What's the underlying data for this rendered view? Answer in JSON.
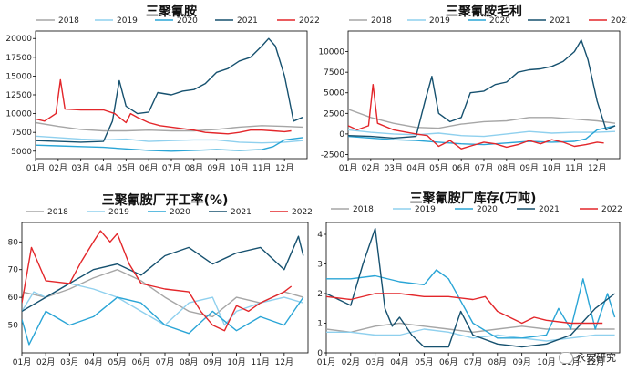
{
  "legend_labels": [
    "2018",
    "2019",
    "2020",
    "2021",
    "2022"
  ],
  "colors": {
    "2018": "#a6a6a6",
    "2019": "#8fd0ee",
    "2020": "#2aa5d6",
    "2021": "#16516f",
    "2022": "#e3262a"
  },
  "months": [
    "01月",
    "02月",
    "03月",
    "04月",
    "05月",
    "06月",
    "07月",
    "08月",
    "09月",
    "10月",
    "11月",
    "12月"
  ],
  "watermark": "永安研究",
  "chart_data": [
    {
      "type": "line",
      "title": "三聚氰胺",
      "ylim": [
        4000,
        21000
      ],
      "yticks": [
        5000,
        7500,
        10000,
        12500,
        15000,
        17500,
        20000
      ],
      "series": [
        {
          "name": "2018",
          "x": [
            0,
            1,
            2,
            3,
            4,
            5,
            6,
            7,
            8,
            9,
            10,
            11,
            11.8
          ],
          "y": [
            8800,
            8300,
            7900,
            7700,
            7700,
            7800,
            7700,
            7700,
            7900,
            8200,
            8400,
            8300,
            8200
          ]
        },
        {
          "name": "2019",
          "x": [
            0,
            1,
            2,
            3,
            4,
            5,
            6,
            7,
            8,
            9,
            10,
            11,
            11.8
          ],
          "y": [
            7000,
            6800,
            6600,
            6500,
            6600,
            6300,
            6400,
            6500,
            6500,
            6200,
            6100,
            6200,
            6400
          ]
        },
        {
          "name": "2020",
          "x": [
            0,
            1,
            2,
            3,
            4,
            5,
            6,
            7,
            8,
            9,
            10,
            10.5,
            11,
            11.8
          ],
          "y": [
            5800,
            5700,
            5600,
            5500,
            5300,
            5100,
            5000,
            5100,
            5200,
            5100,
            5200,
            5600,
            6500,
            6800
          ]
        },
        {
          "name": "2021",
          "x": [
            0,
            1,
            2,
            3,
            3.4,
            3.7,
            4,
            4.5,
            5,
            5.4,
            6,
            6.5,
            7,
            7.5,
            8,
            8.5,
            9,
            9.5,
            10,
            10.3,
            10.6,
            11,
            11.4,
            11.8
          ],
          "y": [
            6400,
            6300,
            6200,
            6300,
            9000,
            14400,
            11000,
            10000,
            10200,
            12800,
            12500,
            13000,
            13200,
            14000,
            15500,
            16000,
            17000,
            17500,
            19000,
            20000,
            19000,
            15000,
            9000,
            9500
          ]
        },
        {
          "name": "2022",
          "x": [
            0,
            0.4,
            0.9,
            1.1,
            1.3,
            2,
            3,
            3.5,
            4,
            4.2,
            4.5,
            5,
            5.5,
            6,
            6.5,
            7,
            7.5,
            8,
            8.5,
            9,
            9.5,
            10,
            10.5,
            11,
            11.3
          ],
          "y": [
            9300,
            9000,
            10000,
            14500,
            10600,
            10500,
            10500,
            10000,
            8800,
            10000,
            9500,
            8800,
            8400,
            8200,
            8000,
            7800,
            7500,
            7400,
            7300,
            7500,
            7800,
            7800,
            7700,
            7600,
            7700
          ]
        }
      ]
    },
    {
      "type": "line",
      "title": "三聚氰胺毛利",
      "ylim": [
        -3000,
        12500
      ],
      "yticks": [
        -2500,
        0,
        2500,
        5000,
        7500,
        10000
      ],
      "series": [
        {
          "name": "2018",
          "x": [
            0,
            1,
            2,
            3,
            4,
            5,
            6,
            7,
            8,
            9,
            10,
            11,
            11.8
          ],
          "y": [
            3000,
            2000,
            1300,
            800,
            700,
            1200,
            1500,
            1600,
            2000,
            2000,
            1800,
            1600,
            1300
          ]
        },
        {
          "name": "2019",
          "x": [
            0,
            1,
            2,
            3,
            4,
            5,
            6,
            7,
            8,
            9,
            10,
            11,
            11.8
          ],
          "y": [
            500,
            200,
            0,
            -100,
            100,
            -200,
            -300,
            0,
            300,
            100,
            200,
            200,
            300
          ]
        },
        {
          "name": "2020",
          "x": [
            0,
            1,
            2,
            3,
            4,
            5,
            6,
            7,
            8,
            9,
            10,
            10.5,
            11,
            11.8
          ],
          "y": [
            -300,
            -500,
            -700,
            -800,
            -1000,
            -1200,
            -1300,
            -1100,
            -900,
            -1000,
            -900,
            -600,
            500,
            1000
          ]
        },
        {
          "name": "2021",
          "x": [
            0,
            1,
            2,
            3,
            3.4,
            3.7,
            4,
            4.5,
            5,
            5.4,
            6,
            6.5,
            7,
            7.5,
            8,
            8.5,
            9,
            9.5,
            10,
            10.3,
            10.6,
            11,
            11.4,
            11.8
          ],
          "y": [
            -200,
            -300,
            -500,
            -300,
            4000,
            7000,
            2500,
            1500,
            2000,
            5000,
            5200,
            6000,
            6300,
            7500,
            7800,
            7900,
            8200,
            8800,
            10000,
            11400,
            9000,
            4000,
            500,
            1000
          ]
        },
        {
          "name": "2022",
          "x": [
            0,
            0.4,
            0.9,
            1.1,
            1.3,
            2,
            3,
            3.5,
            4,
            4.5,
            5,
            5.5,
            6,
            6.5,
            7,
            7.5,
            8,
            8.5,
            9,
            9.5,
            10,
            10.5,
            11,
            11.3
          ],
          "y": [
            1000,
            500,
            1000,
            6000,
            1300,
            500,
            0,
            -200,
            -1500,
            -800,
            -1800,
            -1400,
            -1000,
            -1200,
            -1600,
            -1300,
            -800,
            -1200,
            -700,
            -1000,
            -1500,
            -1300,
            -1000,
            -1100
          ]
        }
      ]
    },
    {
      "type": "line",
      "title": "三聚氰胺厂开工率(%)",
      "ylim": [
        40,
        87
      ],
      "yticks": [
        50,
        60,
        70,
        80
      ],
      "series": [
        {
          "name": "2018",
          "x": [
            0,
            1,
            2,
            3,
            4,
            5,
            6,
            7,
            8,
            9,
            10,
            11,
            11.8
          ],
          "y": [
            62,
            60,
            63,
            67,
            70,
            66,
            60,
            55,
            53,
            60,
            58,
            62,
            60
          ]
        },
        {
          "name": "2019",
          "x": [
            0,
            0.5,
            1,
            2,
            3,
            4,
            5,
            6,
            7,
            8,
            8.5,
            9,
            10,
            11,
            11.8
          ],
          "y": [
            55,
            62,
            60,
            65,
            63,
            60,
            55,
            50,
            58,
            60,
            50,
            55,
            58,
            60,
            58
          ]
        },
        {
          "name": "2020",
          "x": [
            0,
            0.3,
            1,
            2,
            3,
            4,
            5,
            6,
            7,
            8,
            9,
            10,
            11,
            11.8
          ],
          "y": [
            52,
            43,
            55,
            50,
            53,
            60,
            58,
            50,
            47,
            55,
            48,
            53,
            50,
            60
          ]
        },
        {
          "name": "2021",
          "x": [
            0,
            1,
            2,
            3,
            4,
            5,
            6,
            7,
            8,
            9,
            10,
            11,
            11.6,
            11.8
          ],
          "y": [
            55,
            60,
            65,
            70,
            72,
            68,
            75,
            78,
            72,
            76,
            78,
            70,
            82,
            75
          ]
        },
        {
          "name": "2022",
          "x": [
            0,
            0.4,
            1,
            2,
            2.5,
            3,
            3.3,
            3.7,
            4,
            4.5,
            5,
            5.5,
            6,
            7,
            7.5,
            8,
            8.5,
            9,
            9.5,
            10,
            11,
            11.3
          ],
          "y": [
            58,
            78,
            66,
            65,
            73,
            80,
            84,
            80,
            83,
            72,
            65,
            64,
            63,
            62,
            55,
            50,
            48,
            57,
            55,
            58,
            62,
            64
          ]
        }
      ]
    },
    {
      "type": "line",
      "title": "三聚氰胺厂库存(万吨)",
      "ylim": [
        0,
        4.4
      ],
      "yticks": [
        0,
        1,
        2,
        3,
        4
      ],
      "series": [
        {
          "name": "2018",
          "x": [
            0,
            1,
            2,
            3,
            4,
            5,
            6,
            7,
            8,
            9,
            10,
            11,
            11.8
          ],
          "y": [
            0.8,
            0.7,
            0.9,
            1.0,
            0.9,
            0.8,
            0.7,
            0.8,
            0.9,
            0.8,
            0.8,
            0.8,
            0.8
          ]
        },
        {
          "name": "2019",
          "x": [
            0,
            1,
            2,
            3,
            4,
            5,
            6,
            7,
            8,
            9,
            10,
            11,
            11.8
          ],
          "y": [
            0.7,
            0.7,
            0.6,
            0.6,
            0.8,
            0.7,
            0.5,
            0.6,
            0.5,
            0.4,
            0.5,
            0.6,
            0.6
          ]
        },
        {
          "name": "2020",
          "x": [
            0,
            1,
            2,
            3,
            4,
            4.5,
            5,
            6,
            7,
            8,
            9,
            9.5,
            10,
            10.5,
            11,
            11.5,
            11.8
          ],
          "y": [
            2.5,
            2.5,
            2.6,
            2.4,
            2.3,
            2.8,
            2.5,
            1.0,
            0.5,
            0.5,
            0.6,
            1.5,
            0.8,
            2.5,
            0.8,
            2.0,
            1.2
          ]
        },
        {
          "name": "2021",
          "x": [
            0,
            0.5,
            1,
            1.5,
            2,
            2.4,
            2.7,
            3,
            3.5,
            4,
            5,
            5.5,
            6,
            7,
            8,
            9,
            10,
            11,
            11.8
          ],
          "y": [
            2.0,
            1.8,
            1.6,
            3.0,
            4.2,
            1.5,
            0.9,
            1.2,
            0.6,
            0.2,
            0.2,
            1.4,
            0.6,
            0.3,
            0.2,
            0.3,
            0.6,
            1.5,
            2.0
          ]
        },
        {
          "name": "2022",
          "x": [
            0,
            1,
            2,
            3,
            4,
            5,
            6,
            6.5,
            7,
            8,
            8.5,
            9,
            10,
            11,
            11.3
          ],
          "y": [
            1.9,
            1.8,
            2.0,
            2.0,
            1.9,
            1.9,
            1.8,
            1.9,
            1.4,
            1.0,
            1.2,
            1.1,
            1.0,
            1.0,
            1.0
          ]
        }
      ]
    }
  ]
}
